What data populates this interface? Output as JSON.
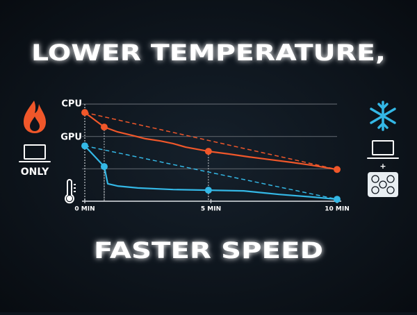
{
  "chart_data": {
    "type": "line",
    "title": "LOWER TEMPERATURE,",
    "subtitle": "FASTER SPEED",
    "annotations": {
      "left_label": "ONLY",
      "right_label": "+"
    },
    "x": [
      0,
      0.77,
      1.3,
      1.9,
      2.4,
      3,
      3.5,
      4,
      4.9,
      5.7,
      6.5,
      7.4,
      8.2,
      9,
      10
    ],
    "series": [
      {
        "name": "CPU",
        "color": "#f0572a",
        "x": [
          0,
          0.77,
          1.3,
          1.9,
          2.4,
          3,
          3.5,
          4,
          4.9,
          5.7,
          6.5,
          7.4,
          8.2,
          9,
          10
        ],
        "values": [
          2.74,
          2.29,
          2.14,
          2.03,
          1.93,
          1.86,
          1.78,
          1.67,
          1.54,
          1.46,
          1.37,
          1.28,
          1.2,
          1.11,
          0.98
        ]
      },
      {
        "name": "GPU",
        "color": "#34b8e6",
        "x": [
          0,
          0.77,
          0.91,
          1.3,
          2.1,
          3.5,
          4.9,
          6.3,
          7.7,
          9,
          10
        ],
        "values": [
          1.71,
          1.07,
          0.54,
          0.47,
          0.41,
          0.36,
          0.34,
          0.32,
          0.21,
          0.13,
          0.06
        ]
      }
    ],
    "xlim": [
      0,
      10
    ],
    "xticks": [
      {
        "value": 0,
        "label": "0 MIN"
      },
      {
        "value": 5,
        "label": "5 MIN"
      },
      {
        "value": 10,
        "label": "10 MIN"
      }
    ],
    "ylim": [
      0,
      3
    ],
    "yticks": [
      1,
      2,
      3
    ],
    "grid": true
  }
}
